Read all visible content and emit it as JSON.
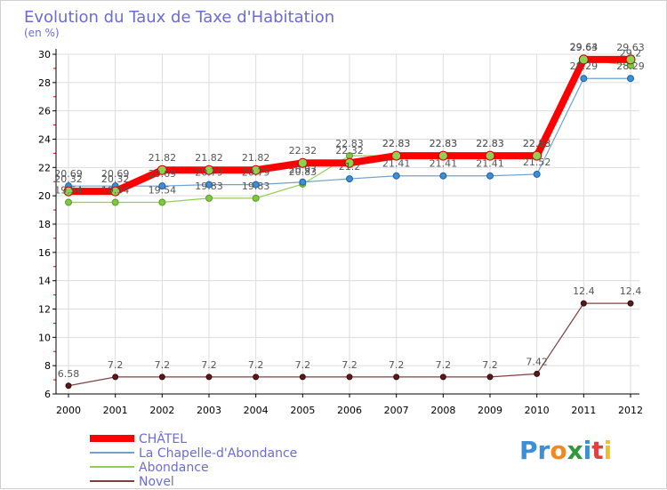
{
  "chart_data": {
    "type": "line",
    "title": "Evolution du Taux de Taxe d'Habitation",
    "subtitle": "(en %)",
    "xlabel": "",
    "ylabel": "",
    "x": [
      "2000",
      "2001",
      "2002",
      "2003",
      "2004",
      "2005",
      "2006",
      "2007",
      "2008",
      "2009",
      "2010",
      "2011",
      "2012"
    ],
    "ylim": [
      6,
      30
    ],
    "yticks": [
      6,
      8,
      10,
      12,
      14,
      16,
      18,
      20,
      22,
      24,
      26,
      28,
      30
    ],
    "grid": true,
    "legend_position": "bottom-left",
    "series": [
      {
        "name": "CHÂTEL",
        "color": "#ff0000",
        "values": [
          20.32,
          20.32,
          21.82,
          21.82,
          21.82,
          22.32,
          22.32,
          22.83,
          22.83,
          22.83,
          22.83,
          29.63,
          29.63
        ]
      },
      {
        "name": "La Chapelle-d'Abondance",
        "color": "#6fa0d0",
        "values": [
          20.69,
          20.69,
          20.69,
          20.79,
          20.79,
          20.97,
          21.2,
          21.41,
          21.41,
          21.41,
          21.52,
          28.29,
          28.29
        ]
      },
      {
        "name": "Abondance",
        "color": "#90d050",
        "values": [
          19.54,
          19.54,
          19.54,
          19.83,
          19.83,
          20.83,
          22.83,
          22.83,
          22.83,
          22.83,
          22.83,
          29.64,
          29.2
        ]
      },
      {
        "name": "Novel",
        "color": "#804040",
        "values": [
          6.58,
          7.2,
          7.2,
          7.2,
          7.2,
          7.2,
          7.2,
          7.2,
          7.2,
          7.2,
          7.42,
          12.4,
          12.4
        ]
      }
    ]
  },
  "brand": {
    "name": "Proxiti",
    "letters": [
      "P",
      "r",
      "o",
      "x",
      "i",
      "t",
      "i"
    ],
    "colors": [
      "#3a8fd8",
      "#3a8fd8",
      "#f08a1c",
      "#2a9a3a",
      "#3a8fd8",
      "#e04040",
      "#f0c020"
    ]
  }
}
